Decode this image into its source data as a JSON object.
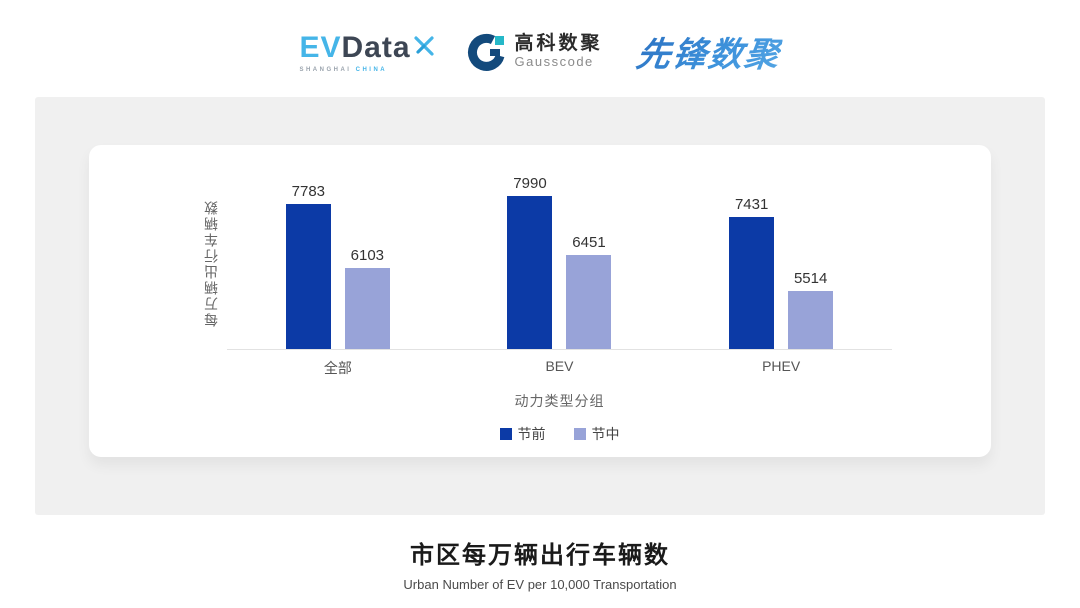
{
  "header": {
    "evdata": {
      "ev": "EV",
      "data": "Data",
      "sub_left": "SHANGHAI",
      "sub_right": "CHINA"
    },
    "gausscode": {
      "cn": "高科数聚",
      "en": "Gausscode"
    },
    "xianfeng": "先锋数聚"
  },
  "chart_data": {
    "type": "bar",
    "title": "市区每万辆出行车辆数",
    "subtitle": "Urban Number of EV per 10,000 Transportation",
    "categories": [
      "全部",
      "BEV",
      "PHEV"
    ],
    "series": [
      {
        "name": "节前",
        "color": "#0c3aa6",
        "values": [
          7783,
          7990,
          7431
        ]
      },
      {
        "name": "节中",
        "color": "#98a3d8",
        "values": [
          6103,
          6451,
          5514
        ]
      }
    ],
    "xlabel": "动力类型分组",
    "ylabel": "每万辆出行车辆数",
    "ylim": [
      4000,
      8300
    ],
    "grid": false,
    "legend_position": "bottom",
    "value_labels": true
  },
  "footer": {
    "title": "市区每万辆出行车辆数",
    "subtitle": "Urban Number of EV per 10,000 Transportation"
  },
  "colors": {
    "series_pre": "#0c3aa6",
    "series_mid": "#98a3d8",
    "panel_gray": "#f0f0f0",
    "axis_line": "#e2e2e2",
    "evdata_blue": "#45b5e8",
    "evdata_dark": "#3d4654",
    "gausscode_navy": "#134a7c",
    "gausscode_teal": "#25b8c8",
    "xianfeng_blue": "#2f7fd0"
  }
}
